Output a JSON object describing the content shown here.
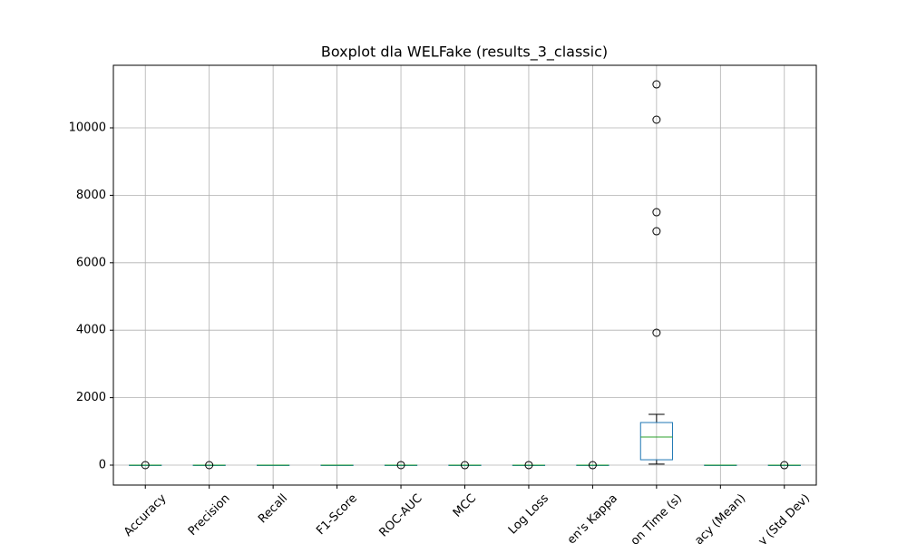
{
  "chart_data": {
    "type": "box",
    "title": "Boxplot dla WELFake (results_3_classic)",
    "categories": [
      "Accuracy",
      "Precision",
      "Recall",
      "F1-Score",
      "ROC-AUC",
      "MCC",
      "Log Loss",
      "en's Kappa",
      "on Time (s)",
      "acy (Mean)",
      "y (Std Dev)"
    ],
    "boxes": [
      {
        "min": 0.85,
        "q1": 0.9,
        "median": 0.93,
        "q3": 0.95,
        "max": 0.98,
        "outliers": [
          0.5
        ]
      },
      {
        "min": 0.85,
        "q1": 0.9,
        "median": 0.93,
        "q3": 0.95,
        "max": 0.98,
        "outliers": [
          0.5
        ]
      },
      {
        "min": 0.85,
        "q1": 0.9,
        "median": 0.93,
        "q3": 0.95,
        "max": 0.98,
        "outliers": []
      },
      {
        "min": 0.85,
        "q1": 0.9,
        "median": 0.93,
        "q3": 0.95,
        "max": 0.98,
        "outliers": []
      },
      {
        "min": 0.9,
        "q1": 0.95,
        "median": 0.97,
        "q3": 0.98,
        "max": 0.99,
        "outliers": [
          0.6
        ]
      },
      {
        "min": 0.7,
        "q1": 0.8,
        "median": 0.86,
        "q3": 0.9,
        "max": 0.96,
        "outliers": [
          0.2
        ]
      },
      {
        "min": 0.1,
        "q1": 0.15,
        "median": 0.2,
        "q3": 0.25,
        "max": 0.35,
        "outliers": [
          1.5
        ]
      },
      {
        "min": 0.7,
        "q1": 0.8,
        "median": 0.86,
        "q3": 0.9,
        "max": 0.96,
        "outliers": [
          0.2
        ]
      },
      {
        "min": 30,
        "q1": 160,
        "median": 833,
        "q3": 1263,
        "max": 1505,
        "outliers": [
          11290,
          10242,
          7500,
          6935,
          3925
        ]
      },
      {
        "min": 0.85,
        "q1": 0.9,
        "median": 0.93,
        "q3": 0.95,
        "max": 0.98,
        "outliers": []
      },
      {
        "min": 0.002,
        "q1": 0.004,
        "median": 0.006,
        "q3": 0.008,
        "max": 0.012,
        "outliers": [
          0.03
        ]
      }
    ],
    "box_color": "#1f77b4",
    "median_color": "#2ca02c",
    "ylim": [
      -591,
      11855
    ],
    "yticks": [
      0,
      2000,
      4000,
      6000,
      8000,
      10000
    ],
    "grid": true
  }
}
